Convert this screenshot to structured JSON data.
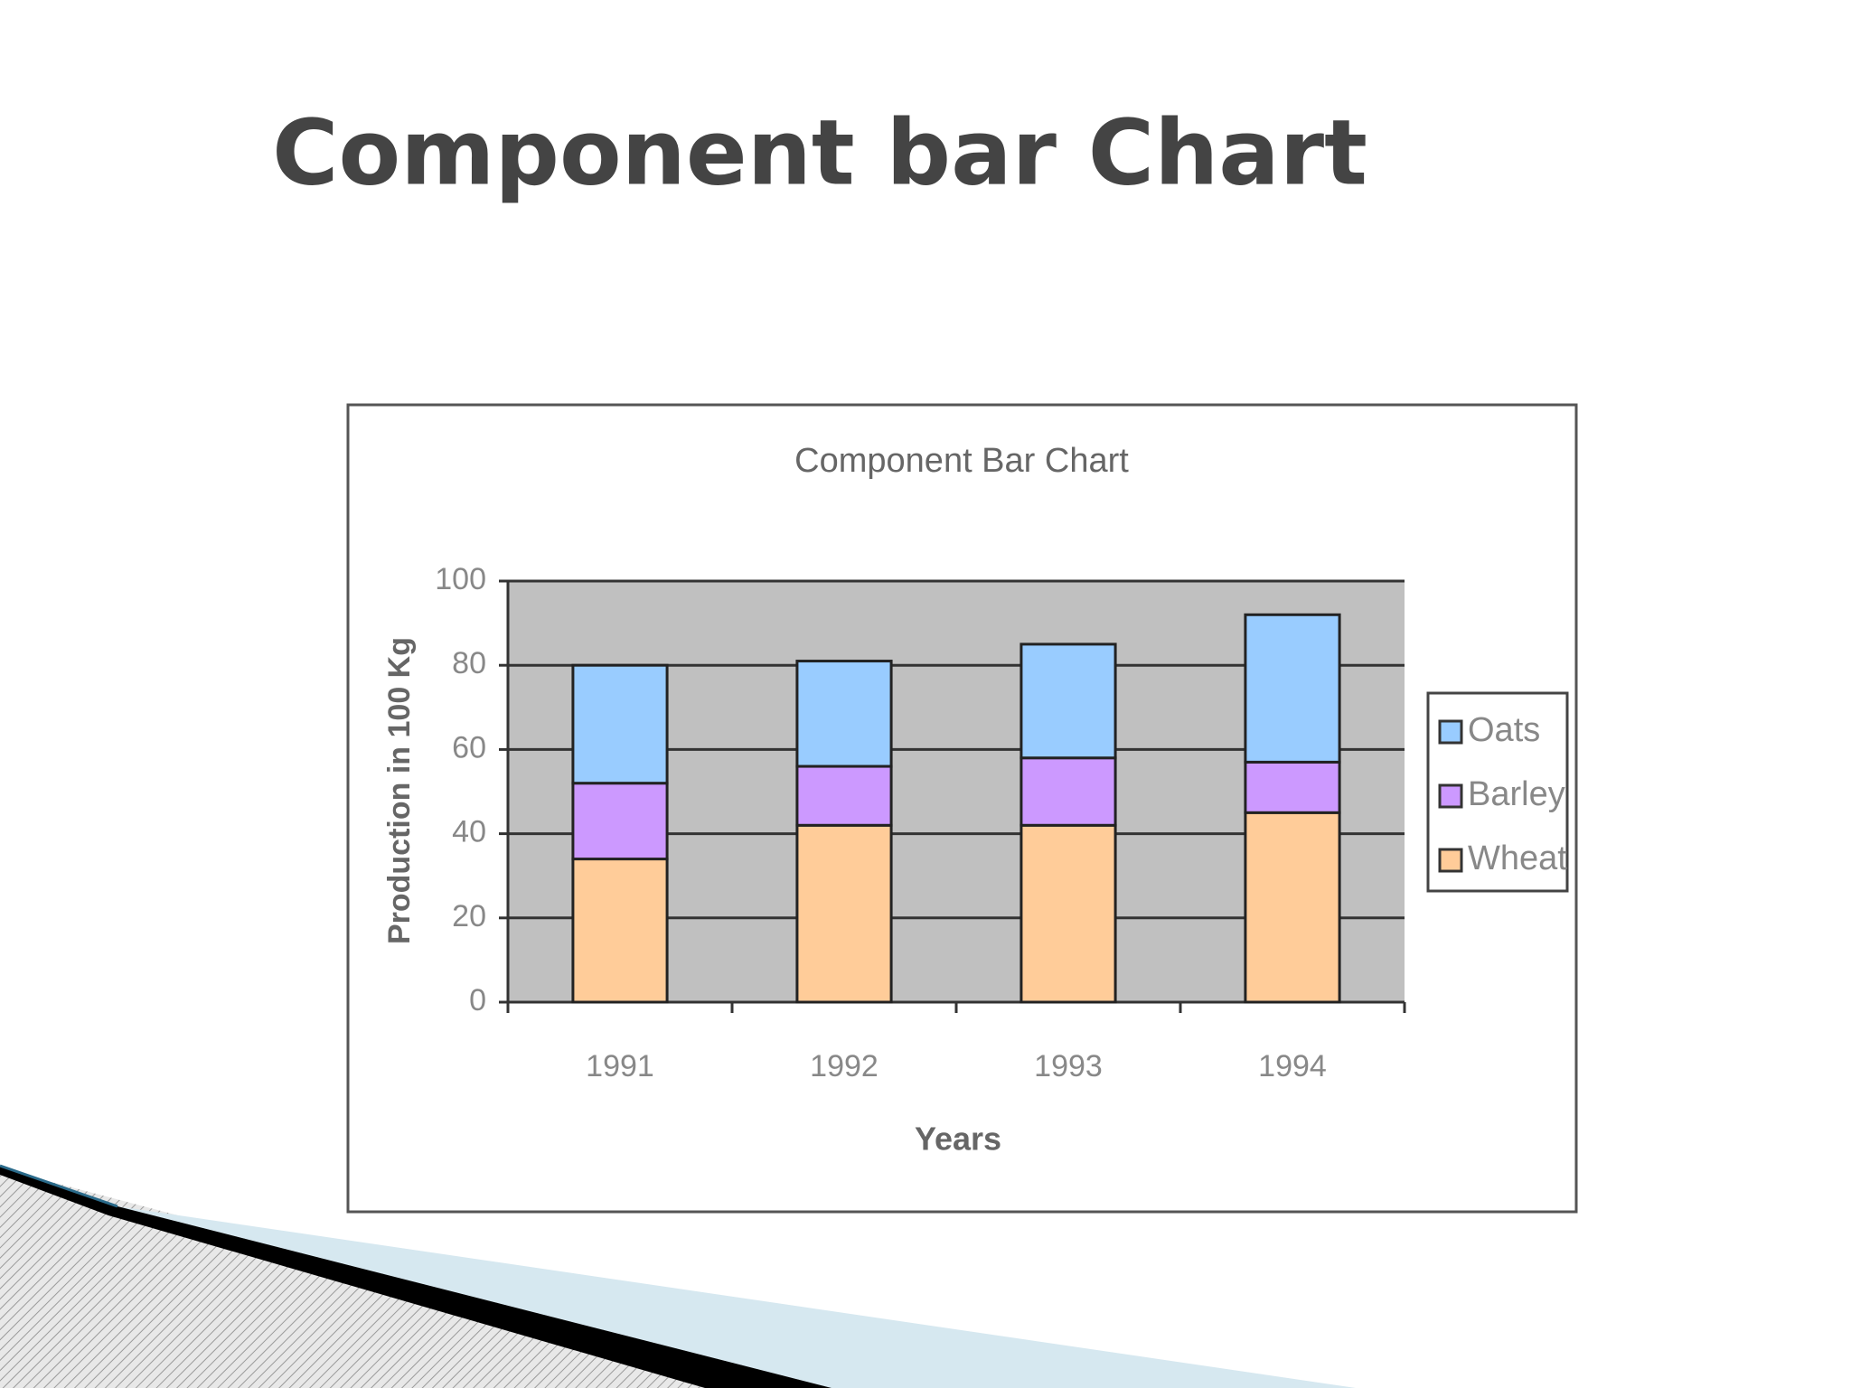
{
  "slide": {
    "title": "Component bar Chart"
  },
  "chart_data": {
    "type": "stacked-bar",
    "title": "Component Bar Chart",
    "x_label": "Years",
    "y_label": "Production in 100 Kg",
    "categories": [
      "1991",
      "1992",
      "1993",
      "1994"
    ],
    "series": [
      {
        "name": "Wheat",
        "color": "#ffcc99",
        "values": [
          34,
          42,
          42,
          45
        ]
      },
      {
        "name": "Barley",
        "color": "#cc99ff",
        "values": [
          18,
          14,
          16,
          12
        ]
      },
      {
        "name": "Oats",
        "color": "#99ccff",
        "values": [
          28,
          25,
          27,
          35
        ]
      }
    ],
    "ylim": [
      0,
      100
    ],
    "yticks": [
      0,
      20,
      40,
      60,
      80,
      100
    ],
    "grid": true,
    "legend": "right"
  }
}
